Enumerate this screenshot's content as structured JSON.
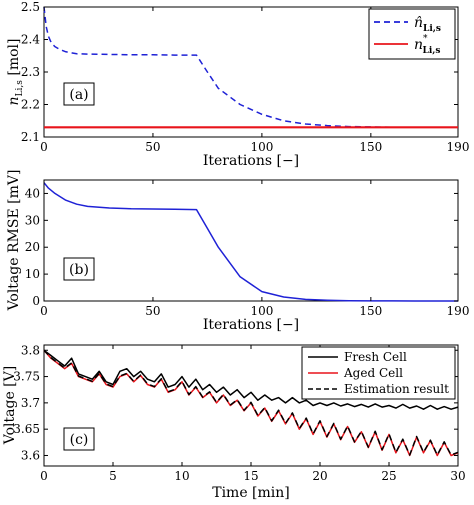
{
  "chart_data": [
    {
      "type": "line",
      "panel_label": "(a)",
      "xlabel": "Iterations [−]",
      "ylabel_main": "n",
      "ylabel_sub": "Li,s",
      "ylabel_unit": " [mol]",
      "xlim": [
        0,
        190
      ],
      "ylim": [
        2.1,
        2.5
      ],
      "xticks": [
        0,
        50,
        100,
        150,
        190
      ],
      "yticks": [
        2.1,
        2.2,
        2.3,
        2.4,
        2.5
      ],
      "legend_position": "top-right",
      "series": [
        {
          "name": "n̂",
          "name_sub": "Li,s",
          "color": "#1f22d6",
          "style": "dashed",
          "x": [
            0,
            1,
            2,
            3,
            4,
            5,
            7,
            10,
            15,
            20,
            30,
            40,
            50,
            60,
            70,
            75,
            80,
            90,
            100,
            110,
            120,
            130,
            140,
            150,
            160,
            170,
            180,
            190
          ],
          "y": [
            2.5,
            2.44,
            2.41,
            2.395,
            2.385,
            2.378,
            2.37,
            2.362,
            2.356,
            2.355,
            2.354,
            2.353,
            2.353,
            2.352,
            2.352,
            2.3,
            2.25,
            2.2,
            2.17,
            2.15,
            2.14,
            2.135,
            2.132,
            2.131,
            2.13,
            2.13,
            2.13,
            2.13
          ]
        },
        {
          "name": "n",
          "name_sup": "*",
          "name_sub": "Li,s",
          "color": "#e8141b",
          "style": "solid",
          "x": [
            0,
            190
          ],
          "y": [
            2.13,
            2.13
          ]
        }
      ]
    },
    {
      "type": "line",
      "panel_label": "(b)",
      "xlabel": "Iterations [−]",
      "ylabel": "Voltage RMSE [mV]",
      "xlim": [
        0,
        190
      ],
      "ylim": [
        0,
        45
      ],
      "xticks": [
        0,
        50,
        100,
        150,
        190
      ],
      "yticks": [
        0,
        10,
        20,
        30,
        40
      ],
      "series": [
        {
          "color": "#1f22d6",
          "style": "solid",
          "x": [
            0,
            2,
            5,
            10,
            15,
            20,
            30,
            40,
            50,
            60,
            70,
            75,
            80,
            90,
            100,
            110,
            120,
            130,
            140,
            150,
            160,
            170,
            180,
            190
          ],
          "y": [
            44,
            42,
            40,
            37.5,
            36,
            35.2,
            34.6,
            34.3,
            34.2,
            34.1,
            34.0,
            27,
            20,
            9,
            3.5,
            1.5,
            0.6,
            0.3,
            0.1,
            0.05,
            0.02,
            0.01,
            0.01,
            0.01
          ]
        }
      ]
    },
    {
      "type": "line",
      "panel_label": "(c)",
      "xlabel": "Time [min]",
      "ylabel": "Voltage [V]",
      "xlim": [
        0,
        30
      ],
      "ylim": [
        3.58,
        3.81
      ],
      "xticks": [
        0,
        5,
        10,
        15,
        20,
        25,
        30
      ],
      "yticks": [
        3.6,
        3.65,
        3.7,
        3.75,
        3.8
      ],
      "legend_position": "top-right",
      "series": [
        {
          "name": "Fresh Cell",
          "color": "#000000",
          "style": "solid",
          "x": [
            0,
            0.5,
            1,
            1.5,
            2,
            2.5,
            3,
            3.5,
            4,
            4.5,
            5,
            5.5,
            6,
            6.5,
            7,
            7.5,
            8,
            8.5,
            9,
            9.5,
            10,
            10.5,
            11,
            11.5,
            12,
            12.5,
            13,
            13.5,
            14,
            14.5,
            15,
            15.5,
            16,
            16.5,
            17,
            17.5,
            18,
            18.5,
            19,
            19.5,
            20,
            20.5,
            21,
            21.5,
            22,
            22.5,
            23,
            23.5,
            24,
            24.5,
            25,
            25.5,
            26,
            26.5,
            27,
            27.5,
            28,
            28.5,
            29,
            29.5,
            30
          ],
          "y": [
            3.8,
            3.79,
            3.78,
            3.77,
            3.785,
            3.755,
            3.75,
            3.745,
            3.76,
            3.74,
            3.735,
            3.76,
            3.765,
            3.75,
            3.76,
            3.745,
            3.74,
            3.755,
            3.73,
            3.735,
            3.75,
            3.73,
            3.745,
            3.725,
            3.735,
            3.72,
            3.73,
            3.715,
            3.725,
            3.71,
            3.72,
            3.705,
            3.715,
            3.705,
            3.71,
            3.7,
            3.71,
            3.7,
            3.705,
            3.695,
            3.7,
            3.695,
            3.7,
            3.694,
            3.698,
            3.693,
            3.697,
            3.692,
            3.698,
            3.692,
            3.695,
            3.69,
            3.697,
            3.69,
            3.694,
            3.688,
            3.695,
            3.688,
            3.693,
            3.688,
            3.692
          ]
        },
        {
          "name": "Aged Cell",
          "color": "#e8141b",
          "style": "solid",
          "x": [
            0,
            0.5,
            1,
            1.5,
            2,
            2.5,
            3,
            3.5,
            4,
            4.5,
            5,
            5.5,
            6,
            6.5,
            7,
            7.5,
            8,
            8.5,
            9,
            9.5,
            10,
            10.5,
            11,
            11.5,
            12,
            12.5,
            13,
            13.5,
            14,
            14.5,
            15,
            15.5,
            16,
            16.5,
            17,
            17.5,
            18,
            18.5,
            19,
            19.5,
            20,
            20.5,
            21,
            21.5,
            22,
            22.5,
            23,
            23.5,
            24,
            24.5,
            25,
            25.5,
            26,
            26.5,
            27,
            27.5,
            28,
            28.5,
            29,
            29.5,
            30
          ],
          "y": [
            3.8,
            3.785,
            3.775,
            3.765,
            3.775,
            3.75,
            3.745,
            3.74,
            3.755,
            3.735,
            3.73,
            3.75,
            3.755,
            3.74,
            3.752,
            3.735,
            3.73,
            3.745,
            3.72,
            3.725,
            3.74,
            3.715,
            3.73,
            3.71,
            3.72,
            3.7,
            3.715,
            3.695,
            3.705,
            3.685,
            3.7,
            3.675,
            3.69,
            3.665,
            3.685,
            3.66,
            3.68,
            3.65,
            3.67,
            3.64,
            3.665,
            3.635,
            3.66,
            3.63,
            3.655,
            3.625,
            3.645,
            3.615,
            3.645,
            3.61,
            3.64,
            3.605,
            3.63,
            3.6,
            3.635,
            3.605,
            3.628,
            3.6,
            3.625,
            3.6,
            3.605
          ]
        },
        {
          "name": "Estimation result",
          "color": "#000000",
          "style": "dashed",
          "x": [
            0,
            0.5,
            1,
            1.5,
            2,
            2.5,
            3,
            3.5,
            4,
            4.5,
            5,
            5.5,
            6,
            6.5,
            7,
            7.5,
            8,
            8.5,
            9,
            9.5,
            10,
            10.5,
            11,
            11.5,
            12,
            12.5,
            13,
            13.5,
            14,
            14.5,
            15,
            15.5,
            16,
            16.5,
            17,
            17.5,
            18,
            18.5,
            19,
            19.5,
            20,
            20.5,
            21,
            21.5,
            22,
            22.5,
            23,
            23.5,
            24,
            24.5,
            25,
            25.5,
            26,
            26.5,
            27,
            27.5,
            28,
            28.5,
            29,
            29.5,
            30
          ],
          "y": [
            3.8,
            3.786,
            3.776,
            3.766,
            3.776,
            3.751,
            3.746,
            3.741,
            3.756,
            3.736,
            3.731,
            3.751,
            3.756,
            3.741,
            3.753,
            3.736,
            3.731,
            3.746,
            3.721,
            3.726,
            3.741,
            3.716,
            3.731,
            3.711,
            3.721,
            3.701,
            3.716,
            3.696,
            3.706,
            3.686,
            3.701,
            3.676,
            3.691,
            3.666,
            3.686,
            3.661,
            3.681,
            3.651,
            3.671,
            3.641,
            3.666,
            3.636,
            3.661,
            3.631,
            3.656,
            3.626,
            3.646,
            3.616,
            3.646,
            3.611,
            3.641,
            3.606,
            3.631,
            3.601,
            3.636,
            3.606,
            3.629,
            3.601,
            3.626,
            3.601,
            3.606
          ]
        }
      ]
    }
  ]
}
